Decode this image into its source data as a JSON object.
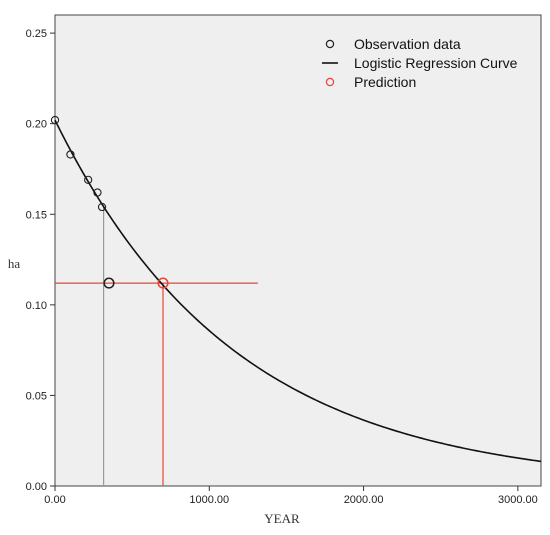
{
  "chart_data": {
    "type": "scatter",
    "xlabel": "YEAR",
    "ylabel": "ha",
    "xlim": [
      0,
      3150
    ],
    "ylim": [
      0,
      0.26
    ],
    "x_ticks": [
      0,
      1000,
      2000,
      3000
    ],
    "x_tick_labels": [
      "0.00",
      "1000.00",
      "2000.00",
      "3000.00"
    ],
    "y_ticks": [
      0,
      0.05,
      0.1,
      0.15,
      0.2,
      0.25
    ],
    "y_tick_labels": [
      "0.00",
      "0.05",
      "0.10",
      "0.15",
      "0.20",
      "0.25"
    ],
    "grid": false,
    "legend_position": "top-right",
    "series": [
      {
        "name": "Observation data",
        "kind": "scatter",
        "color": "#222222",
        "points": [
          [
            0,
            0.202
          ],
          [
            100,
            0.183
          ],
          [
            215,
            0.169
          ],
          [
            275,
            0.162
          ],
          [
            305,
            0.154
          ],
          [
            350,
            0.112
          ]
        ]
      },
      {
        "name": "Logistic Regression Curve",
        "kind": "line",
        "color": "#111111",
        "model": {
          "y0": 0.202,
          "decay_per_year": 0.000857
        }
      },
      {
        "name": "Prediction",
        "kind": "scatter",
        "color": "#e8443a",
        "points": [
          [
            700,
            0.112
          ]
        ]
      }
    ],
    "reference_lines": [
      {
        "orientation": "horizontal",
        "y": 0.112,
        "x_from": 0,
        "x_to": 1315,
        "color": "#e8443a"
      },
      {
        "orientation": "vertical",
        "x": 700,
        "y_from": 0,
        "y_to": 0.112,
        "color": "#e8443a"
      },
      {
        "orientation": "vertical",
        "x": 315,
        "y_from": 0,
        "y_to": 0.154,
        "color": "#999999"
      }
    ]
  }
}
